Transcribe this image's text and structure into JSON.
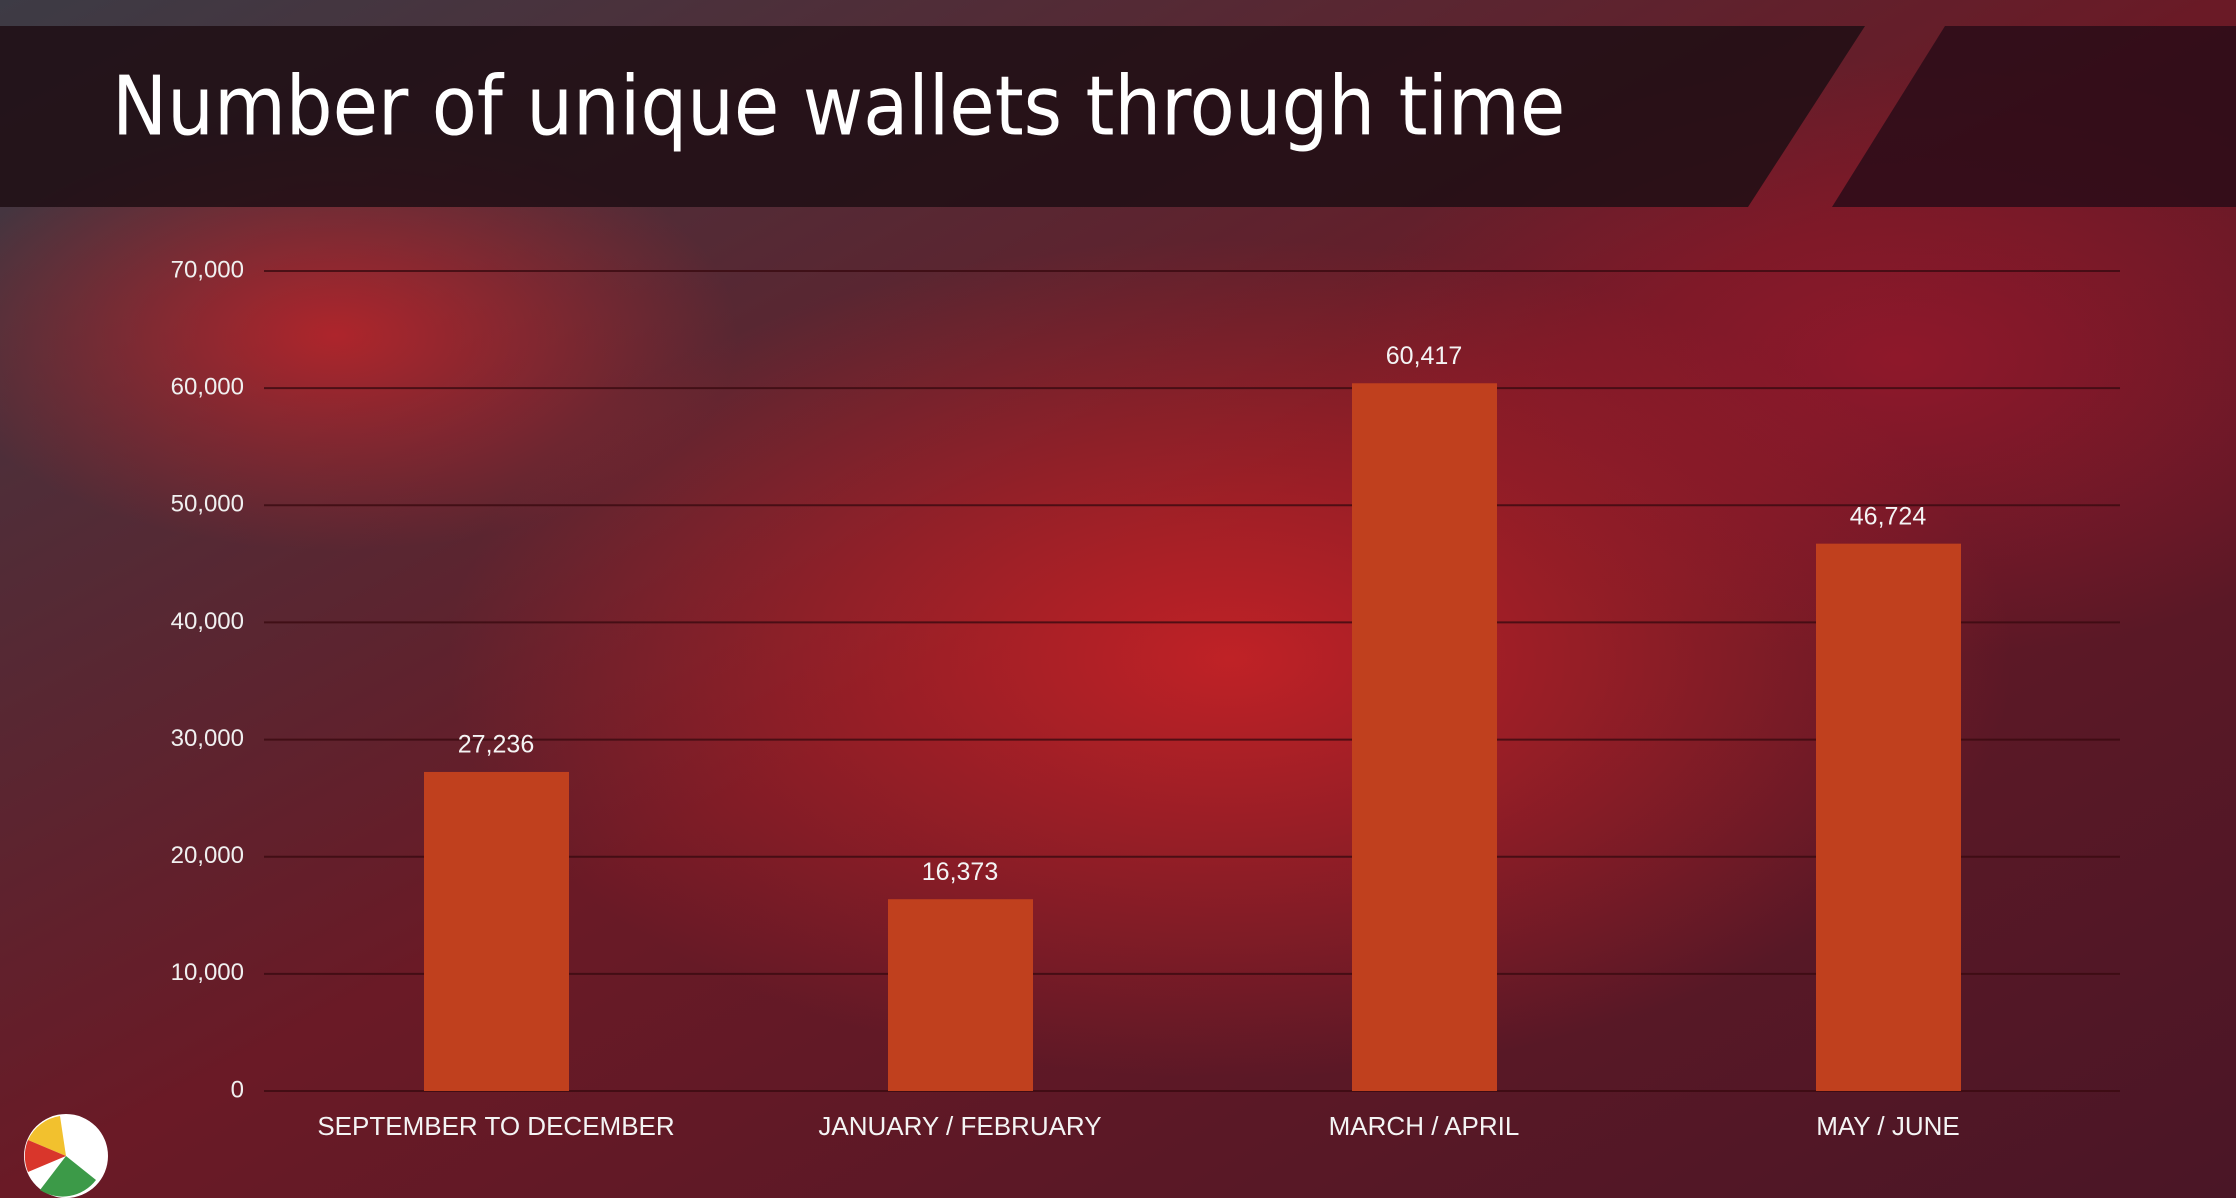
{
  "chart_data": {
    "type": "bar",
    "title": "Number of unique wallets through time",
    "categories": [
      "SEPTEMBER TO DECEMBER",
      "JANUARY / FEBRUARY",
      "MARCH / APRIL",
      "MAY / JUNE"
    ],
    "values": [
      27236,
      16373,
      60417,
      46724
    ],
    "value_labels": [
      "27,236",
      "16,373",
      "60,417",
      "46,724"
    ],
    "color": "#c0401e",
    "ylim": [
      0,
      70000
    ],
    "yticks": [
      0,
      {
        "value": 10000,
        "label": "10,000"
      },
      {
        "value": 20000,
        "label": "20,000"
      },
      {
        "value": 30000,
        "label": "30,000"
      },
      {
        "value": 40000,
        "label": "40,000"
      },
      {
        "value": 50000,
        "label": "50,000"
      },
      {
        "value": 60000,
        "label": "60,000"
      },
      {
        "value": 70000,
        "label": "70,000"
      }
    ],
    "grid": true
  }
}
